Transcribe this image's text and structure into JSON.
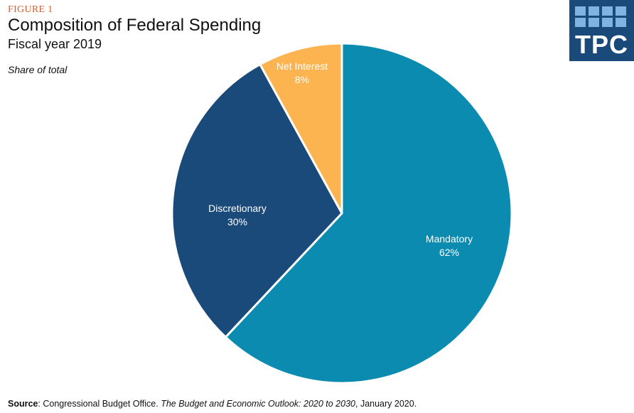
{
  "header": {
    "figure_label": "FIGURE 1",
    "title": "Composition of Federal Spending",
    "subtitle": "Fiscal year 2019",
    "unit_label": "Share of total"
  },
  "logo": {
    "text": "TPC"
  },
  "chart_data": {
    "type": "pie",
    "title": "Composition of Federal Spending",
    "subtitle": "Fiscal year 2019",
    "unit": "Share of total",
    "slices": [
      {
        "label": "Mandatory",
        "value": 62,
        "value_label": "62%",
        "color": "#0b8bb0"
      },
      {
        "label": "Discretionary",
        "value": 30,
        "value_label": "30%",
        "color": "#1a4a7a"
      },
      {
        "label": "Net Interest",
        "value": 8,
        "value_label": "8%",
        "color": "#fbb450"
      }
    ],
    "start": "12 o'clock",
    "direction": "clockwise"
  },
  "source": {
    "prefix": "Source",
    "text_before": ": Congressional Budget Office. ",
    "publication": "The Budget and Economic Outlook: 2020 to 2030",
    "text_after": ", January 2020."
  }
}
